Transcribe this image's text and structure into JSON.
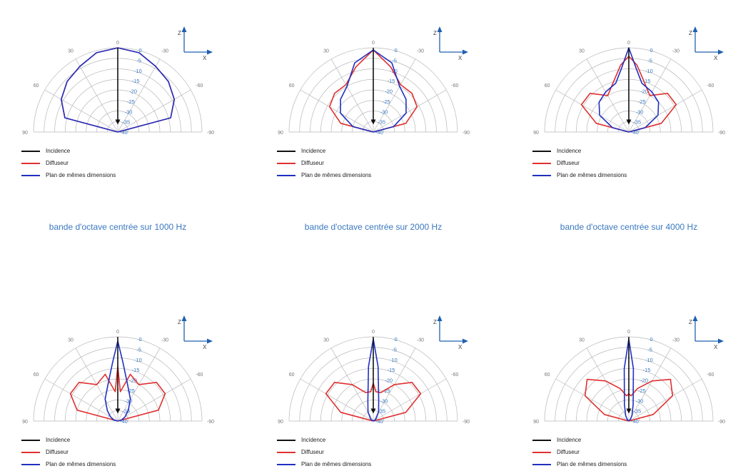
{
  "colors": {
    "incidence": "#111111",
    "diffuseur": "#e03030",
    "plan": "#2030c0",
    "grid": "#b8b8b8",
    "tick_blue": "#3a78c0",
    "axes_blue": "#2060b0",
    "caption": "#3a78c0"
  },
  "captions": [
    "bande d'octave centrée sur 1000 Hz",
    "bande d'octave centrée sur 2000 Hz",
    "bande d'octave centrée sur 4000 Hz"
  ],
  "chart_data": [
    {
      "type": "polar",
      "angle_ticks": [
        "0",
        "30",
        "-30",
        "60",
        "-60",
        "90",
        "-90"
      ],
      "radial_ticks": [
        "0",
        "-5",
        "-10",
        "-15",
        "-20",
        "-25",
        "-30",
        "-35",
        "-40"
      ],
      "axis_labels": {
        "z": "Z",
        "x": "X"
      },
      "rlim_db": [
        -40,
        0
      ],
      "legend": [
        "Incidence",
        "Diffuseur",
        "Plan de mêmes dimensions"
      ],
      "incidence_angle_deg": 0,
      "series": [
        {
          "name": "Diffuseur",
          "angles": [
            -90,
            -75,
            -60,
            -45,
            -30,
            -15,
            0,
            15,
            30,
            45,
            60,
            75,
            90
          ],
          "values": [
            -40,
            -14,
            -9,
            -6,
            -4,
            -1,
            0,
            -1,
            -4,
            -6,
            -9,
            -14,
            -40
          ]
        },
        {
          "name": "Plan de mêmes dimensions",
          "angles": [
            -90,
            -75,
            -60,
            -45,
            -30,
            -15,
            0,
            15,
            30,
            45,
            60,
            75,
            90
          ],
          "values": [
            -40,
            -14,
            -9,
            -6,
            -4,
            -1,
            0,
            -1,
            -4,
            -6,
            -9,
            -14,
            -40
          ]
        }
      ]
    },
    {
      "type": "polar",
      "angle_ticks": [
        "0",
        "30",
        "-30",
        "60",
        "-60",
        "90",
        "-90"
      ],
      "radial_ticks": [
        "0",
        "-5",
        "-10",
        "-15",
        "-20",
        "-25",
        "-30",
        "-35",
        "-40"
      ],
      "axis_labels": {
        "z": "Z",
        "x": "X"
      },
      "rlim_db": [
        -40,
        0
      ],
      "legend": [
        "Incidence",
        "Diffuseur",
        "Plan de mêmes dimensions"
      ],
      "incidence_angle_deg": 0,
      "series": [
        {
          "name": "Diffuseur",
          "angles": [
            -90,
            -75,
            -60,
            -45,
            -30,
            -15,
            0,
            15,
            30,
            45,
            60,
            75,
            90
          ],
          "values": [
            -40,
            -24,
            -16,
            -14,
            -14,
            -8,
            -1,
            -8,
            -14,
            -14,
            -16,
            -24,
            -40
          ]
        },
        {
          "name": "Plan de mêmes dimensions",
          "angles": [
            -90,
            -75,
            -60,
            -45,
            -30,
            -15,
            0,
            15,
            30,
            45,
            60,
            75,
            90
          ],
          "values": [
            -40,
            -30,
            -22,
            -18,
            -15,
            -6,
            -1,
            -6,
            -15,
            -18,
            -22,
            -30,
            -40
          ]
        }
      ]
    },
    {
      "type": "polar",
      "angle_ticks": [
        "0",
        "30",
        "-30",
        "60",
        "-60",
        "90",
        "-90"
      ],
      "radial_ticks": [
        "0",
        "-5",
        "-10",
        "-15",
        "-20",
        "-25",
        "-30",
        "-35",
        "-40"
      ],
      "axis_labels": {
        "z": "Z",
        "x": "X"
      },
      "rlim_db": [
        -40,
        0
      ],
      "legend": [
        "Incidence",
        "Diffuseur",
        "Plan de mêmes dimensions"
      ],
      "incidence_angle_deg": 0,
      "series": [
        {
          "name": "Diffuseur",
          "angles": [
            -90,
            -75,
            -60,
            -45,
            -30,
            -15,
            -7,
            0,
            7,
            15,
            30,
            45,
            60,
            75,
            90
          ],
          "values": [
            -40,
            -24,
            -14,
            -14,
            -20,
            -14,
            -8,
            -4,
            -8,
            -14,
            -20,
            -14,
            -14,
            -24,
            -40
          ]
        },
        {
          "name": "Plan de mêmes dimensions",
          "angles": [
            -90,
            -75,
            -60,
            -45,
            -30,
            -15,
            -7,
            0,
            7,
            15,
            30,
            45,
            60,
            75,
            90
          ],
          "values": [
            -40,
            -32,
            -24,
            -20,
            -18,
            -16,
            -10,
            0,
            -10,
            -16,
            -18,
            -20,
            -24,
            -32,
            -40
          ]
        }
      ]
    },
    {
      "type": "polar",
      "angle_ticks": [
        "0",
        "30",
        "-30",
        "60",
        "-60",
        "90",
        "-90"
      ],
      "radial_ticks": [
        "0",
        "-5",
        "-10",
        "-15",
        "-20",
        "-25",
        "-30",
        "-35",
        "-40"
      ],
      "axis_labels": {
        "z": "Z",
        "x": "X"
      },
      "rlim_db": [
        -40,
        0
      ],
      "legend": [
        "Incidence",
        "Diffuseur",
        "Plan de mêmes dimensions"
      ],
      "incidence_angle_deg": 0,
      "series": [
        {
          "name": "Diffuseur",
          "angles": [
            -90,
            -75,
            -60,
            -45,
            -30,
            -15,
            -5,
            0,
            5,
            15,
            30,
            45,
            60,
            75,
            90
          ],
          "values": [
            -40,
            -20,
            -14,
            -14,
            -20,
            -17,
            -26,
            -14,
            -26,
            -17,
            -20,
            -14,
            -14,
            -20,
            -40
          ]
        },
        {
          "name": "Plan de mêmes dimensions",
          "angles": [
            -90,
            -75,
            -60,
            -45,
            -30,
            -15,
            -5,
            0,
            5,
            15,
            30,
            45,
            60,
            75,
            90
          ],
          "values": [
            -40,
            -38,
            -36,
            -33,
            -28,
            -22,
            -12,
            -2,
            -12,
            -22,
            -28,
            -33,
            -36,
            -38,
            -40
          ]
        }
      ]
    },
    {
      "type": "polar",
      "angle_ticks": [
        "0",
        "30",
        "-30",
        "60",
        "-60",
        "90",
        "-90"
      ],
      "radial_ticks": [
        "0",
        "-5",
        "-10",
        "-15",
        "-20",
        "-25",
        "-30",
        "-35",
        "-40"
      ],
      "axis_labels": {
        "z": "Z",
        "x": "X"
      },
      "rlim_db": [
        -40,
        0
      ],
      "legend": [
        "Incidence",
        "Diffuseur",
        "Plan de mêmes dimensions"
      ],
      "incidence_angle_deg": 0,
      "series": [
        {
          "name": "Diffuseur",
          "angles": [
            -90,
            -75,
            -60,
            -45,
            -30,
            -15,
            -5,
            0,
            5,
            15,
            30,
            45,
            60,
            75,
            90
          ],
          "values": [
            -40,
            -24,
            -14,
            -14,
            -20,
            -26,
            -26,
            -22,
            -26,
            -26,
            -20,
            -14,
            -14,
            -24,
            -40
          ]
        },
        {
          "name": "Plan de mêmes dimensions",
          "angles": [
            -90,
            -75,
            -60,
            -45,
            -30,
            -15,
            -5,
            0,
            5,
            15,
            30,
            45,
            60,
            75,
            90
          ],
          "values": [
            -40,
            -40,
            -39,
            -38,
            -35,
            -30,
            -14,
            -1,
            -14,
            -30,
            -35,
            -38,
            -39,
            -40,
            -40
          ]
        }
      ]
    },
    {
      "type": "polar",
      "angle_ticks": [
        "0",
        "30",
        "-30",
        "60",
        "-60",
        "90",
        "-90"
      ],
      "radial_ticks": [
        "0",
        "-5",
        "-10",
        "-15",
        "-20",
        "-25",
        "-30",
        "-35",
        "-40"
      ],
      "axis_labels": {
        "z": "Z",
        "x": "X"
      },
      "rlim_db": [
        -40,
        0
      ],
      "legend": [
        "Incidence",
        "Diffuseur",
        "Plan de mêmes dimensions"
      ],
      "incidence_angle_deg": 0,
      "series": [
        {
          "name": "Diffuseur",
          "angles": [
            -90,
            -75,
            -60,
            -45,
            -30,
            -15,
            -5,
            0,
            5,
            15,
            30,
            45,
            60,
            75,
            90
          ],
          "values": [
            -40,
            -28,
            -16,
            -12,
            -18,
            -24,
            -28,
            -27,
            -28,
            -24,
            -18,
            -12,
            -16,
            -28,
            -40
          ]
        },
        {
          "name": "Plan de mêmes dimensions",
          "angles": [
            -90,
            -75,
            -60,
            -45,
            -30,
            -15,
            -5,
            0,
            5,
            15,
            30,
            45,
            60,
            75,
            90
          ],
          "values": [
            -40,
            -40,
            -40,
            -39,
            -37,
            -32,
            -15,
            -1,
            -15,
            -32,
            -37,
            -39,
            -40,
            -40,
            -40
          ]
        }
      ]
    }
  ]
}
